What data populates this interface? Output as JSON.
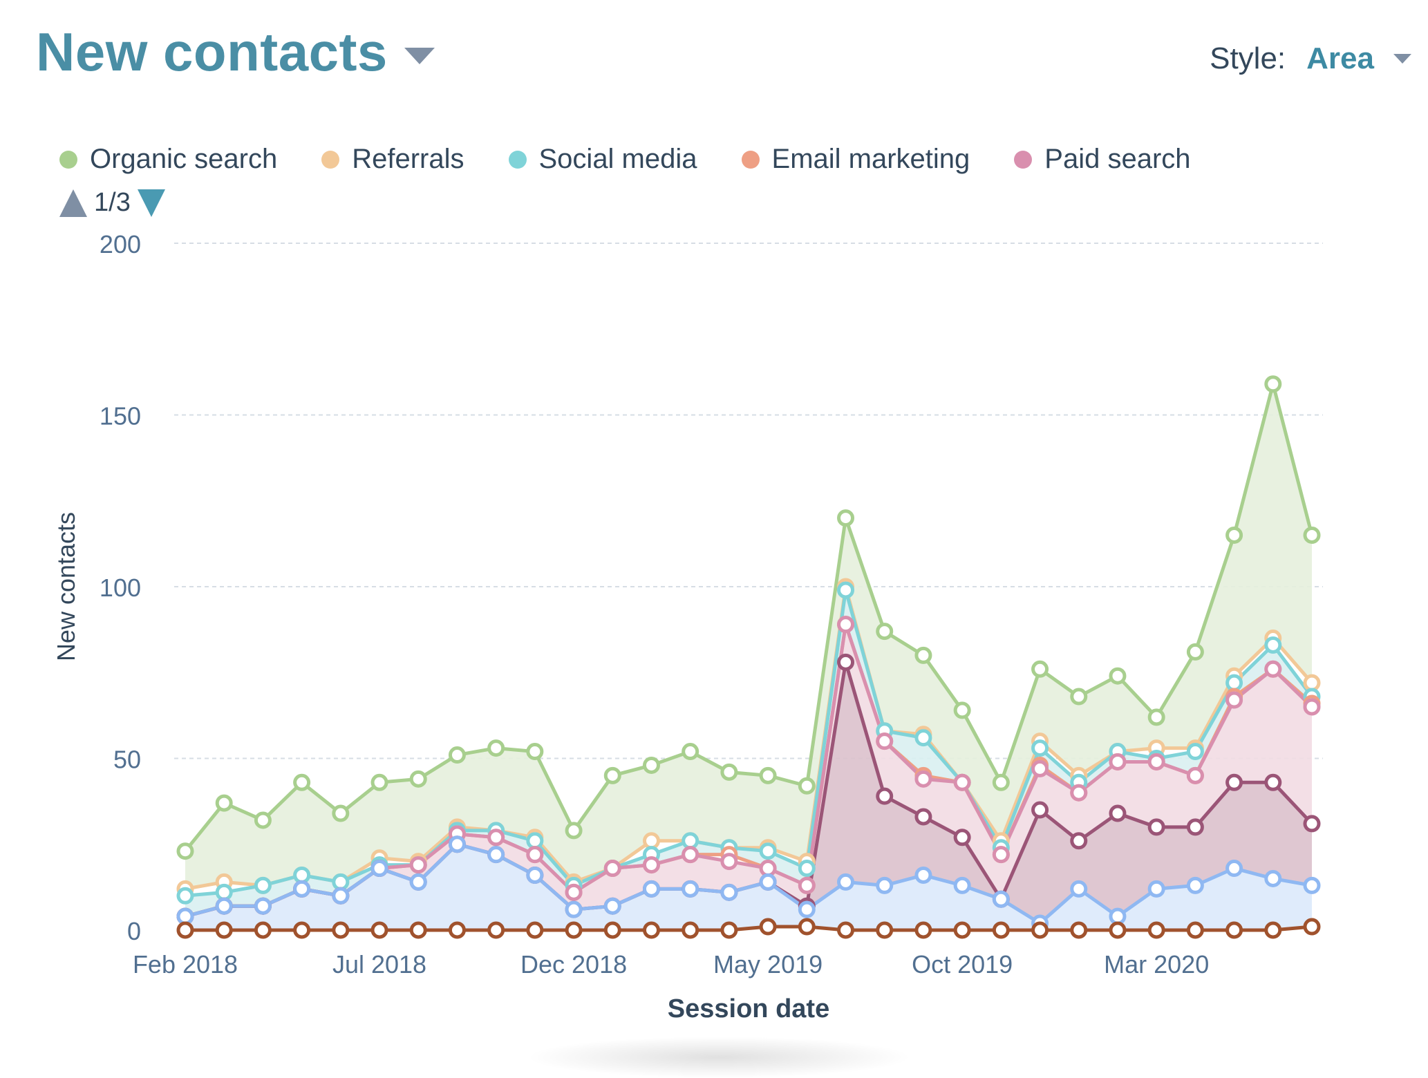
{
  "header": {
    "title": "New contacts",
    "style_label": "Style:",
    "style_value": "Area"
  },
  "legend": [
    {
      "label": "Organic search",
      "color": "#a8cf8e"
    },
    {
      "label": "Referrals",
      "color": "#f2c897"
    },
    {
      "label": "Social media",
      "color": "#7fd3d8"
    },
    {
      "label": "Email marketing",
      "color": "#ee9f84"
    },
    {
      "label": "Paid search",
      "color": "#d98fae"
    }
  ],
  "pager": {
    "text": "1/3"
  },
  "chart_data": {
    "type": "area",
    "stacked": true,
    "ylim": [
      0,
      200
    ],
    "yticks": [
      "0",
      "50",
      "100",
      "150",
      "200"
    ],
    "xlabel": "Session date",
    "ylabel": "New contacts",
    "x_tick_labels": [
      "Feb 2018",
      "Jul 2018",
      "Dec 2018",
      "May 2019",
      "Oct 2019",
      "Mar 2020"
    ],
    "x": [
      "Feb 2018",
      "Mar 2018",
      "Apr 2018",
      "May 2018",
      "Jun 2018",
      "Jul 2018",
      "Aug 2018",
      "Sep 2018",
      "Oct 2018",
      "Nov 2018",
      "Dec 2018",
      "Jan 2019",
      "Feb 2019",
      "Mar 2019",
      "Apr 2019",
      "May 2019",
      "Jun 2019",
      "Jul 2019",
      "Aug 2019",
      "Sep 2019",
      "Oct 2019",
      "Nov 2019",
      "Dec 2019",
      "Jan 2020",
      "Feb 2020",
      "Mar 2020",
      "Apr 2020",
      "May 2020",
      "Jun 2020",
      "Jul 2020"
    ],
    "grid": true,
    "series": [
      {
        "name": "",
        "color": "#a0522d",
        "fill": null,
        "values": [
          0,
          0,
          0,
          0,
          0,
          0,
          0,
          0,
          0,
          0,
          0,
          0,
          0,
          0,
          0,
          1,
          1,
          0,
          0,
          0,
          0,
          0,
          0,
          0,
          0,
          0,
          0,
          0,
          0,
          1
        ]
      },
      {
        "name": "",
        "color": "#8fb8f2",
        "fill": "#dce9fb",
        "values": [
          4,
          7,
          7,
          12,
          10,
          18,
          14,
          25,
          22,
          16,
          6,
          7,
          12,
          12,
          11,
          14,
          6,
          14,
          13,
          16,
          13,
          9,
          2,
          12,
          4,
          12,
          13,
          18,
          15,
          13
        ]
      },
      {
        "name": "",
        "color": "#9b5577",
        "fill": "#dcc1cc",
        "values": [
          4,
          7,
          7,
          12,
          10,
          18,
          14,
          25,
          22,
          16,
          6,
          7,
          12,
          12,
          11,
          14,
          7,
          78,
          39,
          33,
          27,
          9,
          35,
          26,
          34,
          30,
          30,
          43,
          43,
          31
        ]
      },
      {
        "name": "Paid search",
        "color": "#d98fae",
        "fill": "#f2dbe3",
        "values": [
          4,
          7,
          7,
          12,
          10,
          18,
          19,
          28,
          27,
          22,
          11,
          18,
          19,
          22,
          20,
          18,
          13,
          89,
          55,
          44,
          43,
          22,
          47,
          40,
          49,
          49,
          45,
          67,
          76,
          65
        ]
      },
      {
        "name": "Email marketing",
        "color": "#ee9f84",
        "fill": null,
        "values": [
          4,
          7,
          7,
          12,
          10,
          18,
          19,
          28,
          27,
          22,
          11,
          18,
          19,
          22,
          22,
          18,
          13,
          89,
          55,
          45,
          43,
          22,
          48,
          40,
          49,
          49,
          45,
          68,
          76,
          66
        ]
      },
      {
        "name": "Social media",
        "color": "#7fd3d8",
        "fill": "#d9f0f1",
        "values": [
          10,
          11,
          13,
          16,
          14,
          19,
          19,
          29,
          29,
          26,
          13,
          18,
          22,
          26,
          24,
          23,
          18,
          99,
          58,
          56,
          43,
          24,
          53,
          43,
          52,
          50,
          52,
          72,
          83,
          68
        ]
      },
      {
        "name": "Referrals",
        "color": "#f2c897",
        "fill": null,
        "values": [
          12,
          14,
          13,
          16,
          14,
          21,
          20,
          30,
          29,
          27,
          14,
          18,
          26,
          26,
          24,
          24,
          20,
          100,
          58,
          57,
          43,
          26,
          55,
          45,
          52,
          53,
          53,
          74,
          85,
          72
        ]
      },
      {
        "name": "Organic search",
        "color": "#a8cf8e",
        "fill": "#e6f0dd",
        "values": [
          23,
          37,
          32,
          43,
          34,
          43,
          44,
          51,
          53,
          52,
          29,
          45,
          48,
          52,
          46,
          45,
          42,
          120,
          87,
          80,
          64,
          43,
          76,
          68,
          74,
          62,
          81,
          115,
          159,
          115
        ]
      }
    ]
  }
}
